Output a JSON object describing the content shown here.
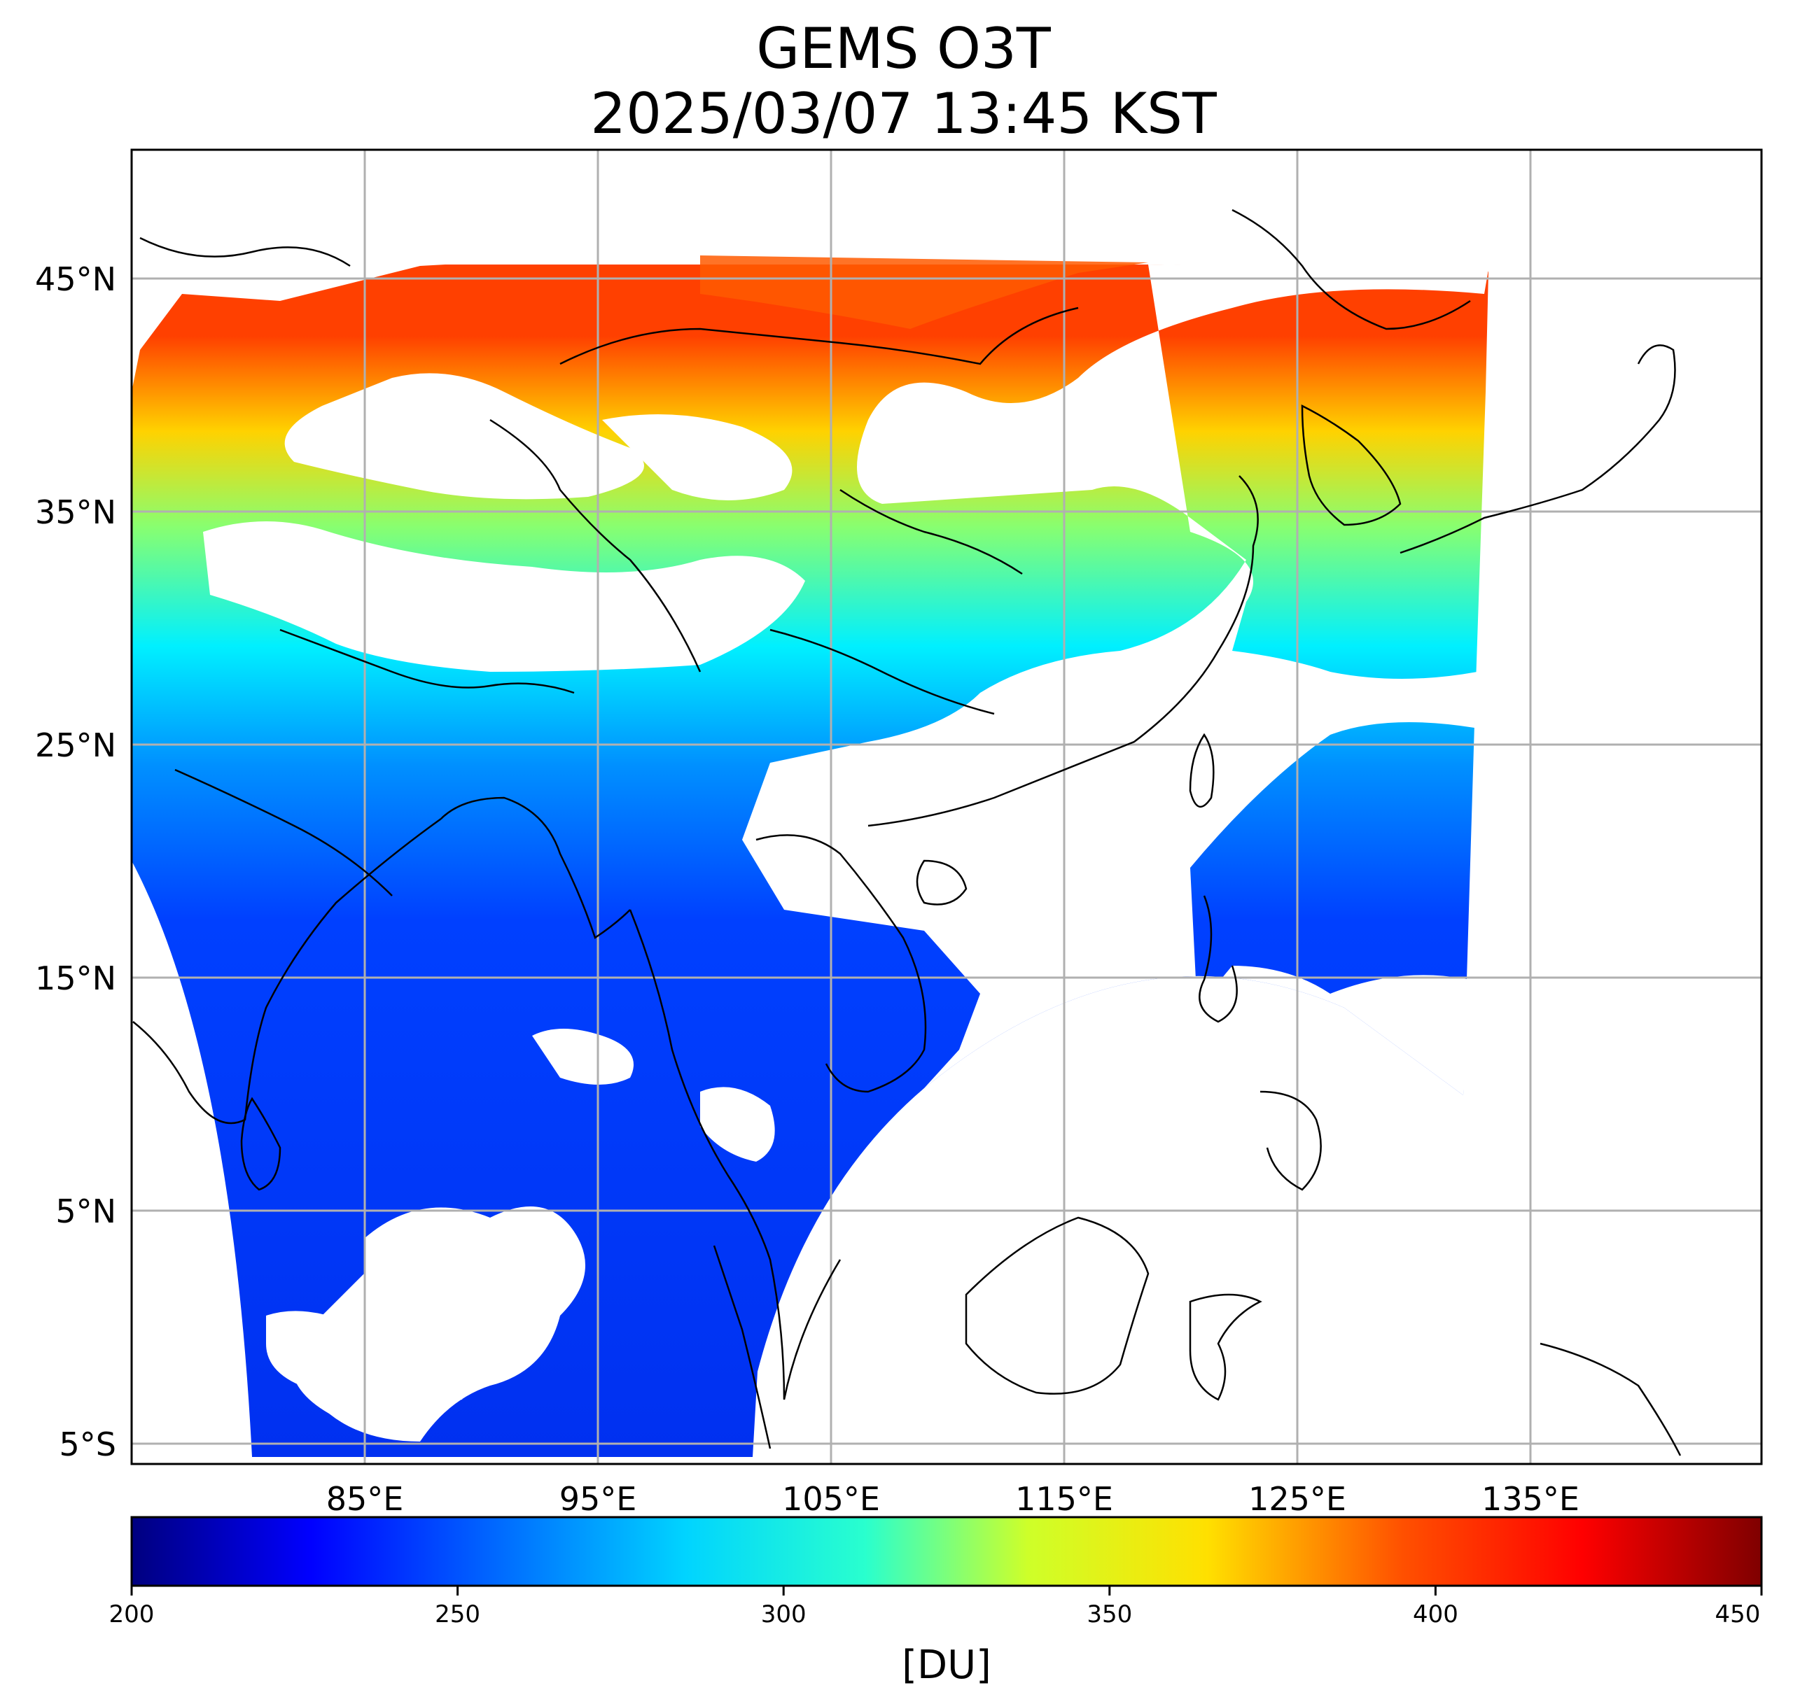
{
  "title": {
    "line1": "GEMS O3T",
    "line2": "2025/03/07 13:45 KST"
  },
  "map": {
    "latitude_labels": [
      "45°N",
      "35°N",
      "25°N",
      "15°N",
      "5°N",
      "5°S"
    ],
    "latitude_values": [
      45,
      35,
      25,
      15,
      5,
      -5
    ],
    "longitude_labels": [
      "85°E",
      "95°E",
      "105°E",
      "115°E",
      "125°E",
      "135°E"
    ],
    "longitude_values": [
      85,
      95,
      105,
      115,
      125,
      135
    ],
    "lon_range": [
      75,
      145
    ],
    "lat_range": [
      -6,
      50.5
    ],
    "gridlines": true,
    "features": [
      "coastlines",
      "country borders",
      "province borders"
    ],
    "white_areas": "cloud / no data"
  },
  "colorbar": {
    "colormap": "jet",
    "min": 200,
    "max": 450,
    "tick_labels": [
      "200",
      "250",
      "300",
      "350",
      "400",
      "450"
    ],
    "tick_values": [
      200,
      250,
      300,
      350,
      400,
      450
    ],
    "unit_label": "[DU]",
    "stops": [
      "#00007f",
      "#0000ff",
      "#007fff",
      "#00ffff",
      "#7fff7f",
      "#ffff00",
      "#ff7f00",
      "#ff0000",
      "#7f0000"
    ]
  }
}
